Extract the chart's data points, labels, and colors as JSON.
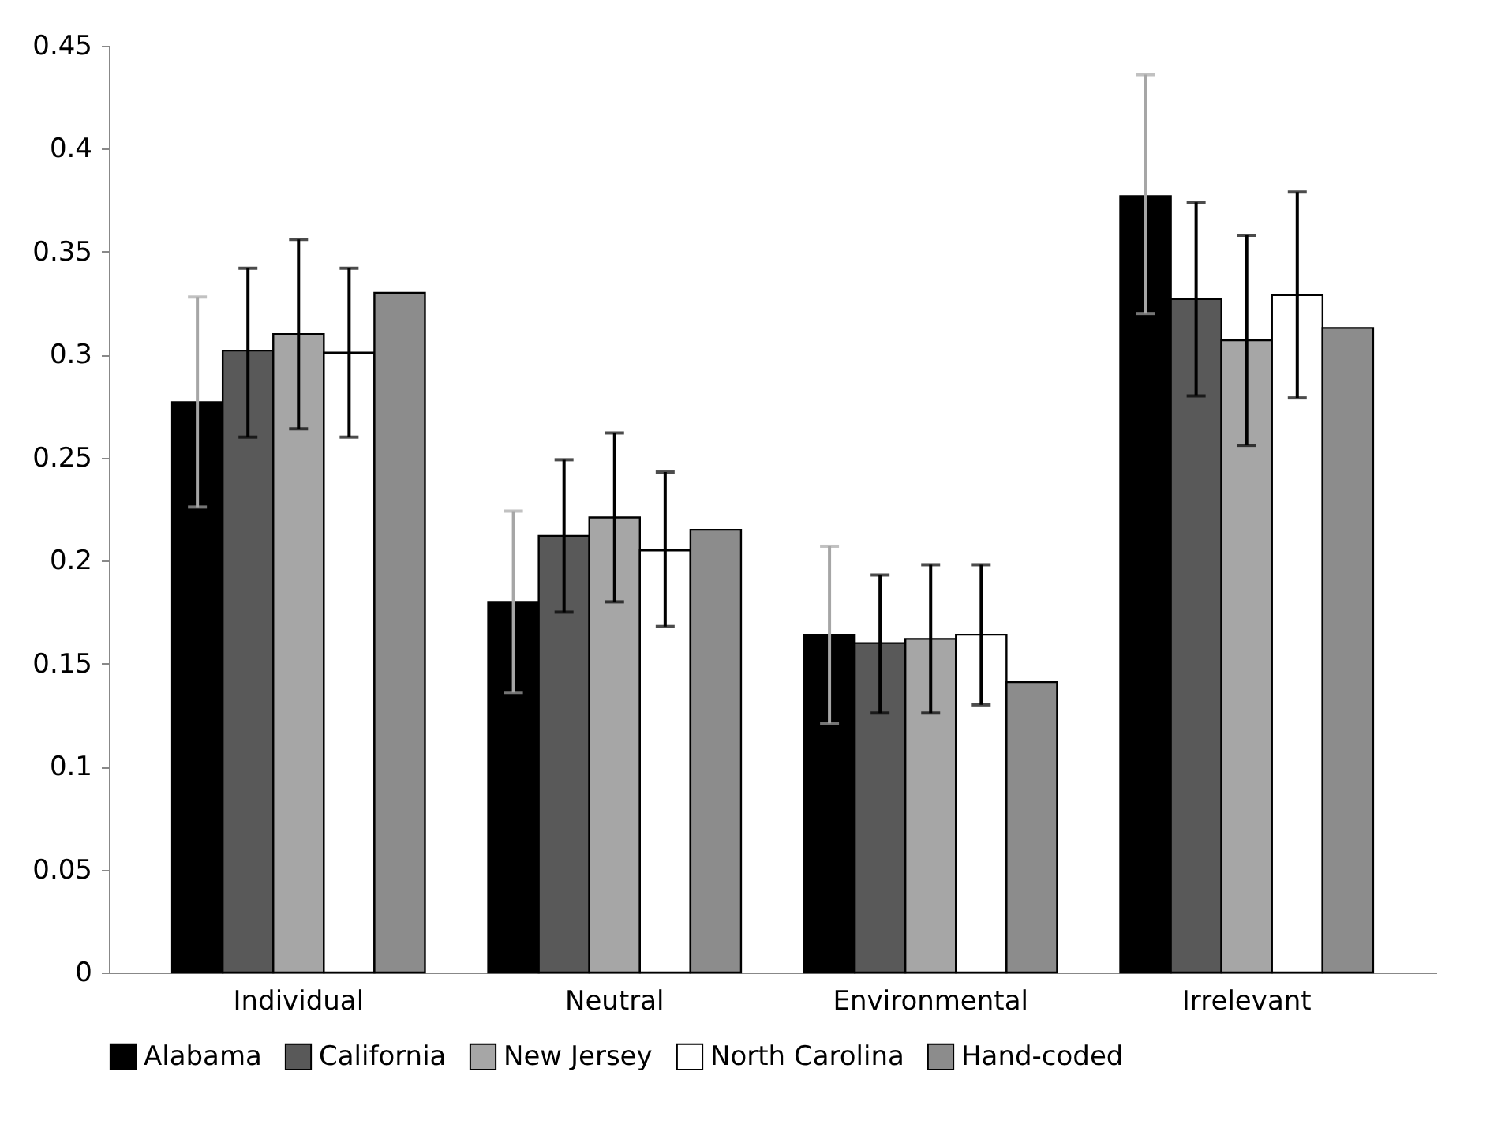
{
  "chart_data": {
    "type": "bar",
    "categories": [
      "Individual",
      "Neutral",
      "Environmental",
      "Irrelevant"
    ],
    "ylim": [
      0,
      0.45
    ],
    "yticks": [
      0,
      0.05,
      0.1,
      0.15,
      0.2,
      0.25,
      0.3,
      0.35,
      0.4,
      0.45
    ],
    "grid": false,
    "legend": "bottom",
    "series": [
      {
        "name": "Alabama",
        "color": "#000000",
        "values": [
          0.277,
          0.18,
          0.164,
          0.377
        ],
        "errors": [
          [
            0.226,
            0.328
          ],
          [
            0.136,
            0.224
          ],
          [
            0.121,
            0.207
          ],
          [
            0.32,
            0.436
          ]
        ]
      },
      {
        "name": "California",
        "color": "#595959",
        "values": [
          0.302,
          0.212,
          0.16,
          0.327
        ],
        "errors": [
          [
            0.26,
            0.342
          ],
          [
            0.175,
            0.249
          ],
          [
            0.126,
            0.193
          ],
          [
            0.28,
            0.374
          ]
        ]
      },
      {
        "name": "New Jersey",
        "color": "#a6a6a6",
        "values": [
          0.31,
          0.221,
          0.162,
          0.307
        ],
        "errors": [
          [
            0.264,
            0.356
          ],
          [
            0.18,
            0.262
          ],
          [
            0.126,
            0.198
          ],
          [
            0.256,
            0.358
          ]
        ]
      },
      {
        "name": "North Carolina",
        "color": "#ffffff",
        "values": [
          0.301,
          0.205,
          0.164,
          0.329
        ],
        "errors": [
          [
            0.26,
            0.342
          ],
          [
            0.168,
            0.243
          ],
          [
            0.13,
            0.198
          ],
          [
            0.279,
            0.379
          ]
        ]
      },
      {
        "name": "Hand-coded",
        "color": "#8c8c8c",
        "values": [
          0.33,
          0.215,
          0.141,
          0.313
        ]
      }
    ]
  }
}
